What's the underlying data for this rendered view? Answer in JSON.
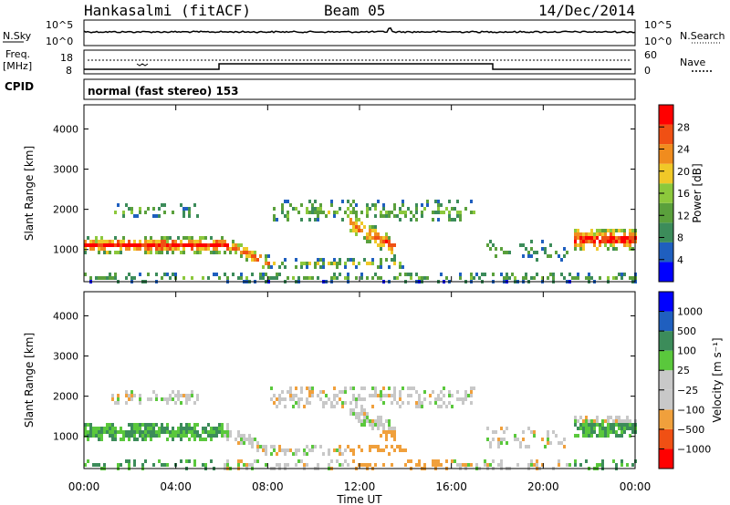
{
  "header": {
    "station": "Hankasalmi (fitACF)",
    "beam": "Beam 05",
    "date": "14/Dec/2014"
  },
  "top_panel": {
    "left_label": "N.Sky",
    "right_label": "N.Search",
    "left_ticks": [
      "10^5",
      "10^0"
    ],
    "right_ticks": [
      "10^5",
      "10^0"
    ]
  },
  "freq_panel": {
    "left_label_top": "Freq.",
    "left_label_bottom": "[MHz]",
    "right_label": "Nave",
    "left_ticks": [
      "18",
      "8"
    ],
    "right_ticks": [
      "60",
      "0"
    ]
  },
  "cpid": {
    "label": "CPID",
    "value": "normal (fast stereo) 153"
  },
  "colors": {
    "power_scale": [
      "#0000ff",
      "#1f5fbf",
      "#3c8c5a",
      "#5aa03c",
      "#8cc83c",
      "#f0c828",
      "#f08c1e",
      "#f05014",
      "#ff0000"
    ],
    "velocity_scale": [
      "#ff0000",
      "#f05014",
      "#f0a03c",
      "#c8c8c8",
      "#c8c8c8",
      "#5ac83c",
      "#3c8c5a",
      "#1f5fbf",
      "#0000ff"
    ]
  },
  "chart_data": [
    {
      "type": "heatmap",
      "name": "power",
      "ylabel": "Slant Range [km]",
      "y_ticks": [
        "1000",
        "2000",
        "3000",
        "4000"
      ],
      "ylim": [
        200,
        4600
      ],
      "colorbar_label": "Power [dB]",
      "colorbar_ticks": [
        "28",
        "24",
        "20",
        "16",
        "12",
        "8",
        "4"
      ],
      "vlim": [
        0,
        32
      ]
    },
    {
      "type": "heatmap",
      "name": "velocity",
      "ylabel": "Slant Range [km]",
      "y_ticks": [
        "1000",
        "2000",
        "3000",
        "4000"
      ],
      "ylim": [
        200,
        4600
      ],
      "colorbar_label": "Velocity [m s⁻¹]",
      "colorbar_ticks": [
        "1000",
        "500",
        "100",
        "25",
        "−25",
        "−100",
        "−500",
        "−1000"
      ]
    }
  ],
  "x_axis": {
    "label": "Time UT",
    "ticks": [
      "00:00",
      "04:00",
      "08:00",
      "12:00",
      "16:00",
      "20:00",
      "00:00"
    ]
  }
}
